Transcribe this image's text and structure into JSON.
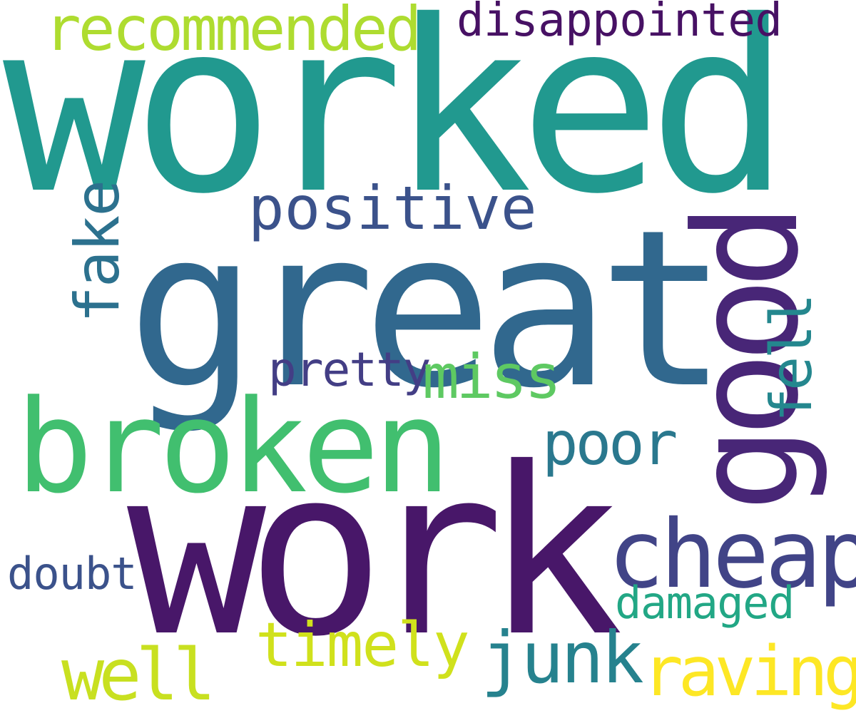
{
  "words": {
    "worked": {
      "text": "worked",
      "color": "#21998f"
    },
    "great": {
      "text": "great",
      "color": "#31688e"
    },
    "work": {
      "text": "work",
      "color": "#481769"
    },
    "broken": {
      "text": "broken",
      "color": "#41bf6f"
    },
    "good": {
      "text": "good",
      "color": "#482677"
    },
    "recommended": {
      "text": "recommended",
      "color": "#aedc30"
    },
    "disappointed": {
      "text": "disappointed",
      "color": "#471164"
    },
    "positive": {
      "text": "positive",
      "color": "#3b528b"
    },
    "fake": {
      "text": "fake",
      "color": "#2c718e"
    },
    "fell": {
      "text": "fell",
      "color": "#24878e"
    },
    "pretty": {
      "text": "pretty",
      "color": "#433e85"
    },
    "miss": {
      "text": "miss",
      "color": "#5ec962"
    },
    "poor": {
      "text": "poor",
      "color": "#2a788e"
    },
    "cheap": {
      "text": "cheap",
      "color": "#414487"
    },
    "doubt": {
      "text": "doubt",
      "color": "#3b528b"
    },
    "damaged": {
      "text": "damaged",
      "color": "#22a785"
    },
    "timely": {
      "text": "timely",
      "color": "#d0e11c"
    },
    "junk": {
      "text": "junk",
      "color": "#26828e"
    },
    "well": {
      "text": "well",
      "color": "#c8e020"
    },
    "raving": {
      "text": "raving",
      "color": "#fde725"
    }
  }
}
